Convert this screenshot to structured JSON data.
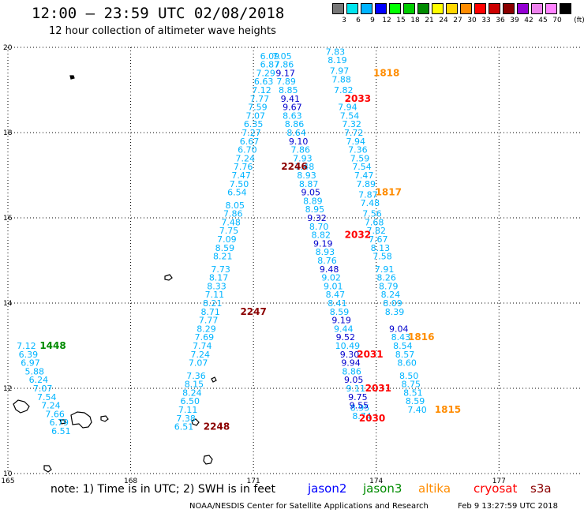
{
  "header": {
    "title": "12:00 — 23:59 UTC 02/08/2018",
    "subtitle": "12 hour collection of altimeter wave heights"
  },
  "colorbar": {
    "unit": "(ft)",
    "swatches": [
      {
        "color": "#777777",
        "label": "3"
      },
      {
        "color": "#00e5ee",
        "label": "6"
      },
      {
        "color": "#00b4ff",
        "label": "9"
      },
      {
        "color": "#0000ff",
        "label": "12"
      },
      {
        "color": "#00ff00",
        "label": "15"
      },
      {
        "color": "#00cd00",
        "label": "18"
      },
      {
        "color": "#008b00",
        "label": "21"
      },
      {
        "color": "#ffff00",
        "label": "24"
      },
      {
        "color": "#ffd700",
        "label": "27"
      },
      {
        "color": "#ff8c00",
        "label": "30"
      },
      {
        "color": "#ff0000",
        "label": "33"
      },
      {
        "color": "#cd0000",
        "label": "36"
      },
      {
        "color": "#8b0000",
        "label": "39"
      },
      {
        "color": "#9400d3",
        "label": "42"
      },
      {
        "color": "#ee82ee",
        "label": "45"
      },
      {
        "color": "#ff82ff",
        "label": "70"
      },
      {
        "color": "#000000",
        "label": ""
      }
    ]
  },
  "footer": {
    "note": "note: 1) Time is in UTC; 2) SWH is in feet",
    "satellites": [
      {
        "name": "jason2",
        "color": "#0000ff"
      },
      {
        "name": "jason3",
        "color": "#008b00"
      },
      {
        "name": "altika",
        "color": "#ff8c00"
      },
      {
        "name": "cryosat",
        "color": "#ff0000"
      },
      {
        "name": "s3a",
        "color": "#8b0000"
      }
    ],
    "credit": "NOAA/NESDIS Center for Satellite Applications and Research",
    "generated": "Feb  9 13:27:59 UTC 2018"
  },
  "chart_data": {
    "type": "scatter",
    "xlim": [
      165,
      179
    ],
    "ylim": [
      10,
      20
    ],
    "x_ticks": [
      {
        "value": 165,
        "label": "165"
      },
      {
        "value": 168,
        "label": "168"
      },
      {
        "value": 171,
        "label": "171"
      },
      {
        "value": 174,
        "label": "174"
      },
      {
        "value": 177,
        "label": "177"
      }
    ],
    "y_ticks": [
      {
        "value": 10,
        "label": "10"
      },
      {
        "value": 12,
        "label": "12"
      },
      {
        "value": 14,
        "label": "14"
      },
      {
        "value": 16,
        "label": "16"
      },
      {
        "value": 18,
        "label": "18"
      },
      {
        "value": 20,
        "label": "20"
      }
    ],
    "grid": true,
    "grid_style": "dotted",
    "tracks": [
      {
        "color": "#00b4ff",
        "points": [
          {
            "x": 171.4,
            "y": 19.8,
            "v": "6.09"
          },
          {
            "x": 171.4,
            "y": 19.6,
            "v": "6.87"
          },
          {
            "x": 171.3,
            "y": 19.4,
            "v": "7.29"
          },
          {
            "x": 171.25,
            "y": 19.2,
            "v": "6.63"
          },
          {
            "x": 171.2,
            "y": 19.0,
            "v": "7.12"
          },
          {
            "x": 171.15,
            "y": 18.8,
            "v": "7.77"
          },
          {
            "x": 171.1,
            "y": 18.6,
            "v": "7.59"
          },
          {
            "x": 171.05,
            "y": 18.4,
            "v": "7.07"
          },
          {
            "x": 171.0,
            "y": 18.2,
            "v": "6.35"
          },
          {
            "x": 170.95,
            "y": 18.0,
            "v": "7.27"
          },
          {
            "x": 170.9,
            "y": 17.8,
            "v": "6.67"
          },
          {
            "x": 170.85,
            "y": 17.6,
            "v": "6.70"
          },
          {
            "x": 170.8,
            "y": 17.4,
            "v": "7.24"
          },
          {
            "x": 170.75,
            "y": 17.2,
            "v": "7.76"
          },
          {
            "x": 170.7,
            "y": 17.0,
            "v": "7.47"
          },
          {
            "x": 170.65,
            "y": 16.8,
            "v": "7.50"
          },
          {
            "x": 170.6,
            "y": 16.6,
            "v": "6.54"
          },
          {
            "x": 170.55,
            "y": 16.3,
            "v": "8.05"
          },
          {
            "x": 170.5,
            "y": 16.1,
            "v": "7.86"
          },
          {
            "x": 170.45,
            "y": 15.9,
            "v": "7.48"
          },
          {
            "x": 170.4,
            "y": 15.7,
            "v": "7.75"
          },
          {
            "x": 170.35,
            "y": 15.5,
            "v": "7.09"
          },
          {
            "x": 170.3,
            "y": 15.3,
            "v": "8.59"
          },
          {
            "x": 170.25,
            "y": 15.1,
            "v": "8.21"
          },
          {
            "x": 170.2,
            "y": 14.8,
            "v": "7.73"
          },
          {
            "x": 170.15,
            "y": 14.6,
            "v": "8.17"
          },
          {
            "x": 170.1,
            "y": 14.4,
            "v": "8.33"
          },
          {
            "x": 170.05,
            "y": 14.2,
            "v": "7.11"
          },
          {
            "x": 170.0,
            "y": 14.0,
            "v": "8.21"
          },
          {
            "x": 169.95,
            "y": 13.8,
            "v": "8.71"
          },
          {
            "x": 169.9,
            "y": 13.6,
            "v": "7.77"
          },
          {
            "x": 169.85,
            "y": 13.4,
            "v": "8.29"
          },
          {
            "x": 169.8,
            "y": 13.2,
            "v": "7.69"
          },
          {
            "x": 169.75,
            "y": 13.0,
            "v": "7.74"
          },
          {
            "x": 169.7,
            "y": 12.8,
            "v": "7.24"
          },
          {
            "x": 169.65,
            "y": 12.6,
            "v": "7.07"
          },
          {
            "x": 169.6,
            "y": 12.3,
            "v": "7.36"
          },
          {
            "x": 169.55,
            "y": 12.1,
            "v": "8.15"
          },
          {
            "x": 169.5,
            "y": 11.9,
            "v": "8.24"
          },
          {
            "x": 169.45,
            "y": 11.7,
            "v": "6.50"
          },
          {
            "x": 169.4,
            "y": 11.5,
            "v": "7.11"
          },
          {
            "x": 169.35,
            "y": 11.3,
            "v": "7.38"
          },
          {
            "x": 169.3,
            "y": 11.1,
            "v": "6.51"
          }
        ]
      },
      {
        "color": "#00b4ff",
        "points": [
          {
            "x": 173.0,
            "y": 19.9,
            "v": "7.83"
          },
          {
            "x": 173.05,
            "y": 19.7,
            "v": "8.19"
          },
          {
            "x": 173.1,
            "y": 19.45,
            "v": "7.97"
          },
          {
            "x": 173.15,
            "y": 19.25,
            "v": "7.88"
          },
          {
            "x": 173.2,
            "y": 19.0,
            "v": "7.82"
          },
          {
            "x": 173.3,
            "y": 18.6,
            "v": "7.94"
          },
          {
            "x": 173.35,
            "y": 18.4,
            "v": "7.54"
          },
          {
            "x": 173.4,
            "y": 18.2,
            "v": "7.32"
          },
          {
            "x": 173.45,
            "y": 18.0,
            "v": "7.72"
          },
          {
            "x": 173.5,
            "y": 17.8,
            "v": "7.94"
          },
          {
            "x": 173.55,
            "y": 17.6,
            "v": "7.36"
          },
          {
            "x": 173.6,
            "y": 17.4,
            "v": "7.59"
          },
          {
            "x": 173.65,
            "y": 17.2,
            "v": "7.54"
          },
          {
            "x": 173.7,
            "y": 17.0,
            "v": "7.47"
          },
          {
            "x": 173.75,
            "y": 16.8,
            "v": "7.89"
          },
          {
            "x": 173.8,
            "y": 16.55,
            "v": "7.87"
          },
          {
            "x": 173.85,
            "y": 16.35,
            "v": "7.48"
          },
          {
            "x": 173.9,
            "y": 16.1,
            "v": "7.56"
          },
          {
            "x": 173.95,
            "y": 15.9,
            "v": "7.68"
          },
          {
            "x": 174.0,
            "y": 15.7,
            "v": "7.82"
          },
          {
            "x": 174.05,
            "y": 15.5,
            "v": "7.67"
          },
          {
            "x": 174.1,
            "y": 15.3,
            "v": "8.13"
          },
          {
            "x": 174.15,
            "y": 15.1,
            "v": "7.58"
          },
          {
            "x": 174.2,
            "y": 14.8,
            "v": "7.91"
          },
          {
            "x": 174.25,
            "y": 14.6,
            "v": "8.26"
          },
          {
            "x": 174.3,
            "y": 14.4,
            "v": "8.79"
          },
          {
            "x": 174.35,
            "y": 14.2,
            "v": "8.24"
          },
          {
            "x": 174.4,
            "y": 14.0,
            "v": "8.09"
          },
          {
            "x": 174.45,
            "y": 13.8,
            "v": "8.39"
          },
          {
            "x": 174.6,
            "y": 13.2,
            "v": "8.43"
          },
          {
            "x": 174.65,
            "y": 13.0,
            "v": "8.54"
          },
          {
            "x": 174.7,
            "y": 12.8,
            "v": "8.57"
          },
          {
            "x": 174.75,
            "y": 12.6,
            "v": "8.60"
          },
          {
            "x": 174.8,
            "y": 12.3,
            "v": "8.50"
          },
          {
            "x": 174.85,
            "y": 12.1,
            "v": "8.75"
          },
          {
            "x": 174.9,
            "y": 11.9,
            "v": "8.51"
          },
          {
            "x": 174.95,
            "y": 11.7,
            "v": "8.59"
          },
          {
            "x": 175.0,
            "y": 11.5,
            "v": "7.40"
          }
        ]
      },
      {
        "color": "#00b4ff",
        "points": [
          {
            "x": 171.7,
            "y": 19.8,
            "v": "7.05"
          },
          {
            "x": 171.75,
            "y": 19.6,
            "v": "7.86"
          },
          {
            "x": 171.8,
            "y": 19.2,
            "v": "7.89"
          },
          {
            "x": 171.85,
            "y": 19.0,
            "v": "8.85"
          },
          {
            "x": 171.95,
            "y": 18.4,
            "v": "8.63"
          },
          {
            "x": 172.0,
            "y": 18.2,
            "v": "8.86"
          },
          {
            "x": 172.05,
            "y": 18.0,
            "v": "8.64"
          },
          {
            "x": 172.15,
            "y": 17.6,
            "v": "7.86"
          },
          {
            "x": 172.2,
            "y": 17.4,
            "v": "7.93"
          },
          {
            "x": 172.25,
            "y": 17.2,
            "v": "7.48"
          },
          {
            "x": 172.3,
            "y": 17.0,
            "v": "8.93"
          },
          {
            "x": 172.35,
            "y": 16.8,
            "v": "8.87"
          },
          {
            "x": 172.45,
            "y": 16.4,
            "v": "8.89"
          },
          {
            "x": 172.5,
            "y": 16.2,
            "v": "8.95"
          },
          {
            "x": 172.6,
            "y": 15.8,
            "v": "8.70"
          },
          {
            "x": 172.65,
            "y": 15.6,
            "v": "8.82"
          },
          {
            "x": 172.75,
            "y": 15.2,
            "v": "8.93"
          },
          {
            "x": 172.8,
            "y": 15.0,
            "v": "8.76"
          },
          {
            "x": 172.9,
            "y": 14.6,
            "v": "9.02"
          },
          {
            "x": 172.95,
            "y": 14.4,
            "v": "9.01"
          },
          {
            "x": 173.0,
            "y": 14.2,
            "v": "8.47"
          },
          {
            "x": 173.05,
            "y": 14.0,
            "v": "8.41"
          },
          {
            "x": 173.1,
            "y": 13.8,
            "v": "8.59"
          },
          {
            "x": 173.2,
            "y": 13.4,
            "v": "9.44"
          },
          {
            "x": 173.3,
            "y": 13.0,
            "v": "10.49"
          },
          {
            "x": 173.4,
            "y": 12.4,
            "v": "8.86"
          },
          {
            "x": 173.5,
            "y": 12.0,
            "v": "9.11"
          },
          {
            "x": 173.6,
            "y": 11.55,
            "v": "8.95"
          },
          {
            "x": 173.65,
            "y": 11.35,
            "v": "8.74"
          }
        ]
      },
      {
        "color": "#0000cd",
        "points": [
          {
            "x": 171.78,
            "y": 19.4,
            "v": "9.17"
          },
          {
            "x": 171.9,
            "y": 18.8,
            "v": "9.41"
          },
          {
            "x": 171.95,
            "y": 18.6,
            "v": "9.67"
          },
          {
            "x": 172.1,
            "y": 17.8,
            "v": "9.10"
          },
          {
            "x": 172.4,
            "y": 16.6,
            "v": "9.05"
          },
          {
            "x": 172.55,
            "y": 16.0,
            "v": "9.32"
          },
          {
            "x": 172.7,
            "y": 15.4,
            "v": "9.19"
          },
          {
            "x": 172.85,
            "y": 14.8,
            "v": "9.48"
          },
          {
            "x": 173.15,
            "y": 13.6,
            "v": "9.19"
          },
          {
            "x": 173.25,
            "y": 13.2,
            "v": "9.52"
          },
          {
            "x": 173.35,
            "y": 12.8,
            "v": "9.30"
          },
          {
            "x": 173.38,
            "y": 12.6,
            "v": "9.94"
          },
          {
            "x": 173.45,
            "y": 12.2,
            "v": "9.05"
          },
          {
            "x": 173.55,
            "y": 11.8,
            "v": "9.75"
          },
          {
            "x": 173.58,
            "y": 11.6,
            "v": "9.55"
          },
          {
            "x": 174.55,
            "y": 13.4,
            "v": "9.04"
          }
        ]
      },
      {
        "color": "#00b4ff",
        "points": [
          {
            "x": 165.45,
            "y": 13.0,
            "v": "7.12"
          },
          {
            "x": 165.5,
            "y": 12.8,
            "v": "6.39"
          },
          {
            "x": 165.55,
            "y": 12.6,
            "v": "6.97"
          },
          {
            "x": 165.65,
            "y": 12.4,
            "v": "5.88"
          },
          {
            "x": 165.75,
            "y": 12.2,
            "v": "6.24"
          },
          {
            "x": 165.85,
            "y": 12.0,
            "v": "7.07"
          },
          {
            "x": 165.95,
            "y": 11.8,
            "v": "7.54"
          },
          {
            "x": 166.05,
            "y": 11.6,
            "v": "7.24"
          },
          {
            "x": 166.15,
            "y": 11.4,
            "v": "7.66"
          },
          {
            "x": 166.25,
            "y": 11.2,
            "v": "6.79"
          },
          {
            "x": 166.3,
            "y": 11.0,
            "v": "6.51"
          }
        ]
      }
    ],
    "time_labels": [
      {
        "x": 174.25,
        "y": 19.4,
        "label": "1818",
        "color": "#ff8c00"
      },
      {
        "x": 173.55,
        "y": 18.8,
        "label": "2033",
        "color": "#ff0000"
      },
      {
        "x": 172.0,
        "y": 17.2,
        "label": "2246",
        "color": "#8b0000"
      },
      {
        "x": 174.3,
        "y": 16.6,
        "label": "1817",
        "color": "#ff8c00"
      },
      {
        "x": 173.55,
        "y": 15.6,
        "label": "2032",
        "color": "#ff0000"
      },
      {
        "x": 171.0,
        "y": 13.8,
        "label": "2247",
        "color": "#8b0000"
      },
      {
        "x": 166.1,
        "y": 13.0,
        "label": "1448",
        "color": "#008b00"
      },
      {
        "x": 175.1,
        "y": 13.2,
        "label": "1816",
        "color": "#ff8c00"
      },
      {
        "x": 173.85,
        "y": 12.8,
        "label": "2031",
        "color": "#ff0000"
      },
      {
        "x": 174.05,
        "y": 12.0,
        "label": "2031",
        "color": "#ff0000"
      },
      {
        "x": 170.1,
        "y": 11.1,
        "label": "2248",
        "color": "#8b0000"
      },
      {
        "x": 173.9,
        "y": 11.3,
        "label": "2030",
        "color": "#ff0000"
      },
      {
        "x": 175.75,
        "y": 11.5,
        "label": "1815",
        "color": "#ff8c00"
      }
    ]
  }
}
